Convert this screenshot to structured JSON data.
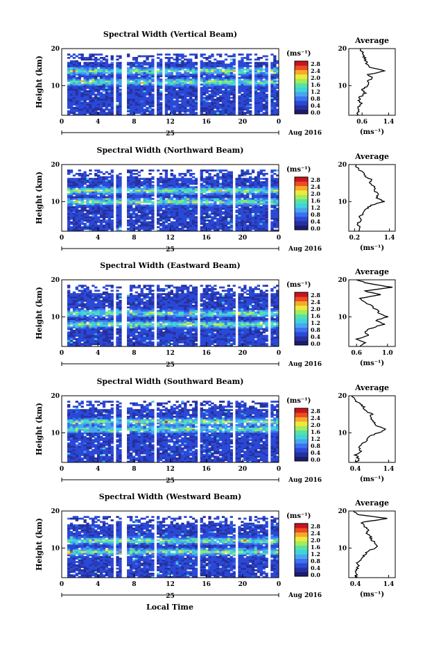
{
  "figure": {
    "xlabel": "Local Time",
    "colormap": [
      "#1c1c6e",
      "#26309e",
      "#2b49d6",
      "#3a72f2",
      "#48a6ee",
      "#3fd4dc",
      "#56e2a6",
      "#a4ec5a",
      "#f0e93a",
      "#f6a92a",
      "#ec4c22",
      "#c8141c"
    ]
  },
  "chart_data": [
    {
      "type": "heatmap",
      "title": "Spectral Width (Vertical Beam)",
      "ylabel": "Height (km)",
      "ylim": [
        2,
        20
      ],
      "yticks": [
        20,
        10
      ],
      "xlim": [
        0,
        24
      ],
      "xticks": [
        "0",
        "4",
        "8",
        "12",
        "16",
        "20",
        "0"
      ],
      "date_day": "25",
      "date_label": "Aug 2016",
      "colorbar": {
        "unit": "(ms⁻¹)",
        "range": [
          0,
          2.8
        ],
        "ticks": [
          "2.8",
          "2.4",
          "2.0",
          "1.6",
          "1.2",
          "0.8",
          "0.4",
          "0.0"
        ]
      },
      "data_gaps_hours": [
        [
          5.5,
          6.0
        ],
        [
          6.5,
          7.0
        ],
        [
          10.0,
          10.4
        ],
        [
          10.9,
          11.3
        ],
        [
          15.0,
          15.3
        ],
        [
          19.0,
          19.3
        ],
        [
          21.0,
          21.3
        ],
        [
          22.6,
          23.0
        ]
      ],
      "bright_layers_km": [
        11,
        14
      ],
      "average_profile": {
        "title": "Average",
        "xlabel": "(ms⁻¹)",
        "xlim": [
          0.2,
          1.6
        ],
        "xticks": [
          "0.6",
          "1.4"
        ],
        "ylim": [
          2,
          20
        ],
        "yticks": [
          20,
          10
        ],
        "height_km": [
          2,
          3,
          4,
          5,
          6,
          7,
          8,
          9,
          10,
          11,
          12,
          13,
          14,
          15,
          16,
          17,
          18,
          19,
          20
        ],
        "value": [
          0.45,
          0.5,
          0.45,
          0.6,
          0.5,
          0.55,
          0.7,
          0.6,
          0.8,
          0.75,
          0.9,
          0.8,
          1.3,
          0.85,
          0.75,
          0.7,
          0.65,
          0.6,
          0.55
        ]
      }
    },
    {
      "type": "heatmap",
      "title": "Spectral Width (Northward Beam)",
      "ylabel": "Height (km)",
      "ylim": [
        2,
        20
      ],
      "yticks": [
        20,
        10
      ],
      "xlim": [
        0,
        24
      ],
      "xticks": [
        "0",
        "4",
        "8",
        "12",
        "16",
        "20",
        "0"
      ],
      "date_day": "25",
      "date_label": "Aug 2016",
      "colorbar": {
        "unit": "(ms⁻¹)",
        "range": [
          0,
          2.8
        ],
        "ticks": [
          "2.8",
          "2.4",
          "2.0",
          "1.6",
          "1.2",
          "0.8",
          "0.4",
          "0.0"
        ]
      },
      "data_gaps_hours": [
        [
          5.5,
          6.0
        ],
        [
          6.6,
          7.0
        ],
        [
          10.0,
          10.4
        ],
        [
          15.0,
          15.3
        ],
        [
          18.9,
          19.2
        ],
        [
          22.6,
          23.0
        ]
      ],
      "bright_layers_km": [
        10,
        13
      ],
      "average_profile": {
        "title": "Average",
        "xlabel": "(ms⁻¹)",
        "xlim": [
          0.0,
          1.6
        ],
        "xticks": [
          "0.2",
          "1.4"
        ],
        "ylim": [
          2,
          20
        ],
        "yticks": [
          20,
          10
        ],
        "height_km": [
          2,
          3,
          4,
          5,
          6,
          7,
          8,
          9,
          10,
          11,
          12,
          13,
          14,
          15,
          16,
          17,
          18,
          19,
          20
        ],
        "value": [
          0.35,
          0.4,
          0.3,
          0.45,
          0.4,
          0.5,
          0.6,
          0.75,
          1.2,
          0.95,
          1.05,
          0.85,
          0.9,
          0.7,
          0.75,
          0.55,
          0.45,
          0.3,
          0.25
        ]
      }
    },
    {
      "type": "heatmap",
      "title": "Spectral Width (Eastward Beam)",
      "ylabel": "Height (km)",
      "ylim": [
        2,
        20
      ],
      "yticks": [
        20,
        10
      ],
      "xlim": [
        0,
        24
      ],
      "xticks": [
        "0",
        "4",
        "8",
        "12",
        "16",
        "20",
        "0"
      ],
      "date_day": "25",
      "date_label": "Aug 2016",
      "colorbar": {
        "unit": "(ms⁻¹)",
        "range": [
          0,
          2.8
        ],
        "ticks": [
          "2.8",
          "2.4",
          "2.0",
          "1.6",
          "1.2",
          "0.8",
          "0.4",
          "0.0"
        ]
      },
      "data_gaps_hours": [
        [
          5.5,
          5.9
        ],
        [
          6.6,
          7.0
        ],
        [
          10.0,
          10.4
        ],
        [
          15.0,
          15.3
        ],
        [
          19.0,
          19.3
        ],
        [
          22.6,
          23.0
        ]
      ],
      "bright_layers_km": [
        8,
        11
      ],
      "average_profile": {
        "title": "Average",
        "xlabel": "(ms⁻¹)",
        "xlim": [
          0.5,
          1.1
        ],
        "xticks": [
          "0.6",
          "1.0"
        ],
        "ylim": [
          2,
          20
        ],
        "yticks": [
          20,
          10
        ],
        "height_km": [
          2,
          3,
          4,
          5,
          6,
          7,
          8,
          9,
          10,
          11,
          12,
          13,
          14,
          15,
          16,
          17,
          18,
          19,
          20
        ],
        "value": [
          0.65,
          0.7,
          0.6,
          0.75,
          0.7,
          0.8,
          0.95,
          0.85,
          1.0,
          0.9,
          0.85,
          0.8,
          0.7,
          0.65,
          0.9,
          0.7,
          1.05,
          0.75,
          0.6
        ]
      }
    },
    {
      "type": "heatmap",
      "title": "Spectral Width (Southward Beam)",
      "ylabel": "Height (km)",
      "ylim": [
        2,
        20
      ],
      "yticks": [
        20,
        10
      ],
      "xlim": [
        0,
        24
      ],
      "xticks": [
        "0",
        "4",
        "8",
        "12",
        "16",
        "20",
        "0"
      ],
      "date_day": "25",
      "date_label": "Aug 2016",
      "colorbar": {
        "unit": "(ms⁻¹)",
        "range": [
          0,
          2.8
        ],
        "ticks": [
          "2.8",
          "2.4",
          "2.0",
          "1.6",
          "1.2",
          "0.8",
          "0.4",
          "0.0"
        ]
      },
      "data_gaps_hours": [
        [
          5.5,
          5.9
        ],
        [
          6.6,
          7.0
        ],
        [
          10.0,
          10.4
        ],
        [
          15.0,
          15.3
        ],
        [
          18.9,
          19.2
        ],
        [
          22.6,
          23.0
        ]
      ],
      "bright_layers_km": [
        11,
        13
      ],
      "average_profile": {
        "title": "Average",
        "xlabel": "(ms⁻¹)",
        "xlim": [
          0.2,
          1.6
        ],
        "xticks": [
          "0.4",
          "1.4"
        ],
        "ylim": [
          2,
          20
        ],
        "yticks": [
          20,
          10
        ],
        "height_km": [
          2,
          3,
          4,
          5,
          6,
          7,
          8,
          9,
          10,
          11,
          12,
          13,
          14,
          15,
          16,
          17,
          18,
          19,
          20
        ],
        "value": [
          0.45,
          0.5,
          0.4,
          0.55,
          0.5,
          0.6,
          0.75,
          0.8,
          1.1,
          1.3,
          1.0,
          0.95,
          0.85,
          0.9,
          0.7,
          0.65,
          0.5,
          0.35,
          0.3
        ]
      }
    },
    {
      "type": "heatmap",
      "title": "Spectral Width (Westward Beam)",
      "ylabel": "Height (km)",
      "ylim": [
        2,
        20
      ],
      "yticks": [
        20,
        10
      ],
      "xlim": [
        0,
        24
      ],
      "xticks": [
        "0",
        "4",
        "8",
        "12",
        "16",
        "20",
        "0"
      ],
      "date_day": "25",
      "date_label": "Aug 2016",
      "colorbar": {
        "unit": "(ms⁻¹)",
        "range": [
          0,
          2.8
        ],
        "ticks": [
          "2.8",
          "2.4",
          "2.0",
          "1.6",
          "1.2",
          "0.8",
          "0.4",
          "0.0"
        ]
      },
      "data_gaps_hours": [
        [
          5.5,
          5.9
        ],
        [
          6.6,
          7.0
        ],
        [
          10.0,
          10.4
        ],
        [
          15.0,
          15.3
        ],
        [
          19.0,
          19.3
        ],
        [
          22.6,
          23.0
        ]
      ],
      "bright_layers_km": [
        9,
        12
      ],
      "average_profile": {
        "title": "Average",
        "xlabel": "(ms⁻¹)",
        "xlim": [
          0.2,
          1.6
        ],
        "xticks": [
          "0.4",
          "1.4"
        ],
        "ylim": [
          2,
          20
        ],
        "yticks": [
          20,
          10
        ],
        "height_km": [
          2,
          3,
          4,
          5,
          6,
          7,
          8,
          9,
          10,
          11,
          12,
          13,
          14,
          15,
          16,
          17,
          18,
          19,
          20
        ],
        "value": [
          0.4,
          0.45,
          0.4,
          0.5,
          0.45,
          0.55,
          0.65,
          0.75,
          1.0,
          1.05,
          0.9,
          0.85,
          0.75,
          0.8,
          0.65,
          0.6,
          1.4,
          0.45,
          0.35
        ]
      }
    }
  ]
}
